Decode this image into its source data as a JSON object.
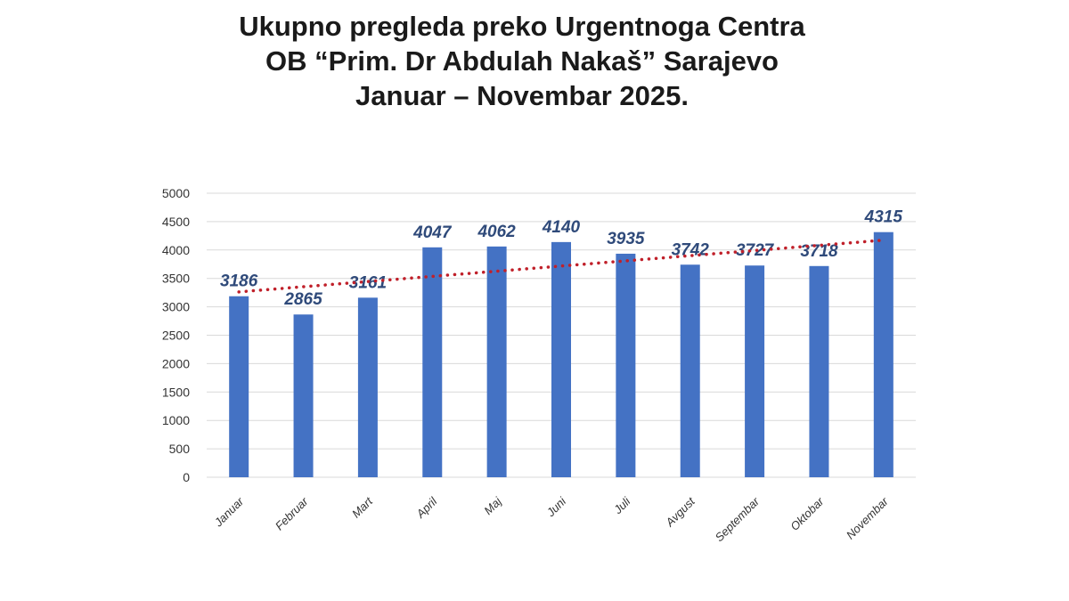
{
  "chart_data": {
    "type": "bar",
    "title": [
      "Ukupno pregleda preko Urgentnoga Centra",
      "OB “Prim. Dr Abdulah Nakaš” Sarajevo",
      "Januar – Novembar 2025."
    ],
    "categories": [
      "Januar",
      "Februar",
      "Mart",
      "April",
      "Maj",
      "Juni",
      "Juli",
      "Avgust",
      "Septembar",
      "Oktobar",
      "Novembar"
    ],
    "values": [
      3186,
      2865,
      3161,
      4047,
      4062,
      4140,
      3935,
      3742,
      3727,
      3718,
      4315
    ],
    "ylim": [
      0,
      5000
    ],
    "yticks": [
      0,
      500,
      1000,
      1500,
      2000,
      2500,
      3000,
      3500,
      4000,
      4500,
      5000
    ],
    "grid": true,
    "trendline": "linear",
    "colors": {
      "bar": "#4472c4",
      "trendline": "#c0202a",
      "data_label": "#2f4a7a"
    }
  }
}
